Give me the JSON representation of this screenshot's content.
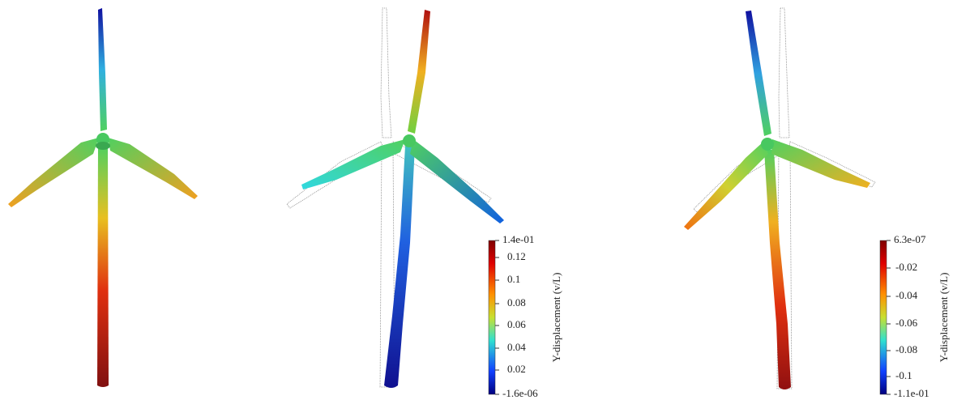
{
  "colorbars": [
    {
      "title": "Y-displacement (v/L)",
      "ticks": [
        "1.4e-01",
        "0.12",
        "0.1",
        "0.08",
        "0.06",
        "0.04",
        "0.02",
        "-1.6e-06"
      ]
    },
    {
      "title": "Y-displacement (v/L)",
      "ticks": [
        "6.3e-07",
        "-0.02",
        "-0.04",
        "-0.06",
        "-0.08",
        "-0.1",
        "-1.1e-01"
      ]
    }
  ]
}
